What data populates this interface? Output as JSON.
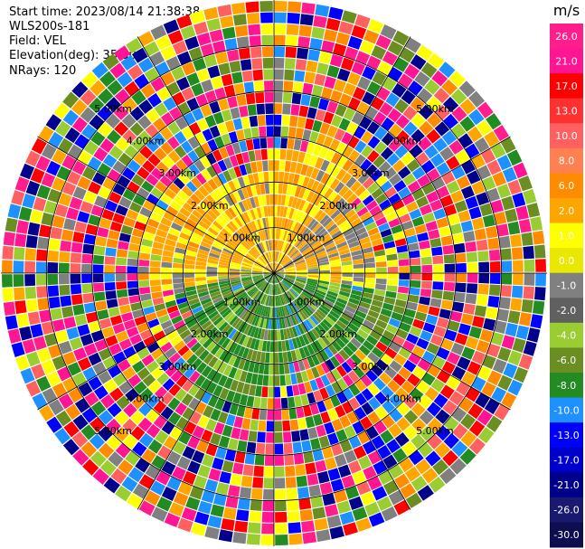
{
  "header": {
    "start_time": "Start time: 2023/08/14 21:38:38",
    "instrument": "WLS200s-181",
    "field": "Field: VEL",
    "elevation": "Elevation(deg): 35.30",
    "nrays": "NRays: 120"
  },
  "chart_data": {
    "type": "heatmap",
    "subtype": "polar-ppi",
    "field": "VEL",
    "nrays": 120,
    "max_range_km": 6.0,
    "range_rings_km": [
      1.0,
      2.0,
      3.0,
      4.0,
      5.0
    ],
    "ring_labels": [
      "1.00km",
      "2.00km",
      "3.00km",
      "4.00km",
      "5.00km"
    ],
    "colorbar": {
      "unit": "m/s",
      "ticks": [
        "26.0",
        "21.0",
        "17.0",
        "13.0",
        "10.0",
        "8.0",
        "6.0",
        "2.0",
        "1.0",
        "0.0",
        "-1.0",
        "-2.0",
        "-4.0",
        "-6.0",
        "-8.0",
        "-10.0",
        "-13.0",
        "-17.0",
        "-21.0",
        "-26.0",
        "-30.0"
      ],
      "colors": [
        "#ff1e8c",
        "#ff1493",
        "#ff0000",
        "#ff3030",
        "#ff6060",
        "#ff8050",
        "#ff8c00",
        "#ffa500",
        "#ffff00",
        "#e8e800",
        "#808080",
        "#606060",
        "#9acd32",
        "#6b8e23",
        "#228b22",
        "#1e90ff",
        "#0000ff",
        "#0000cd",
        "#00008b",
        "#191970",
        "#0d0d50"
      ]
    },
    "pattern": {
      "near_north_half": "orange/yellow (positive ~2 to 6 m/s)",
      "near_south_half": "green/olive (negative ~-2 to -6 m/s)",
      "far_range": "noise (random colors)"
    }
  }
}
